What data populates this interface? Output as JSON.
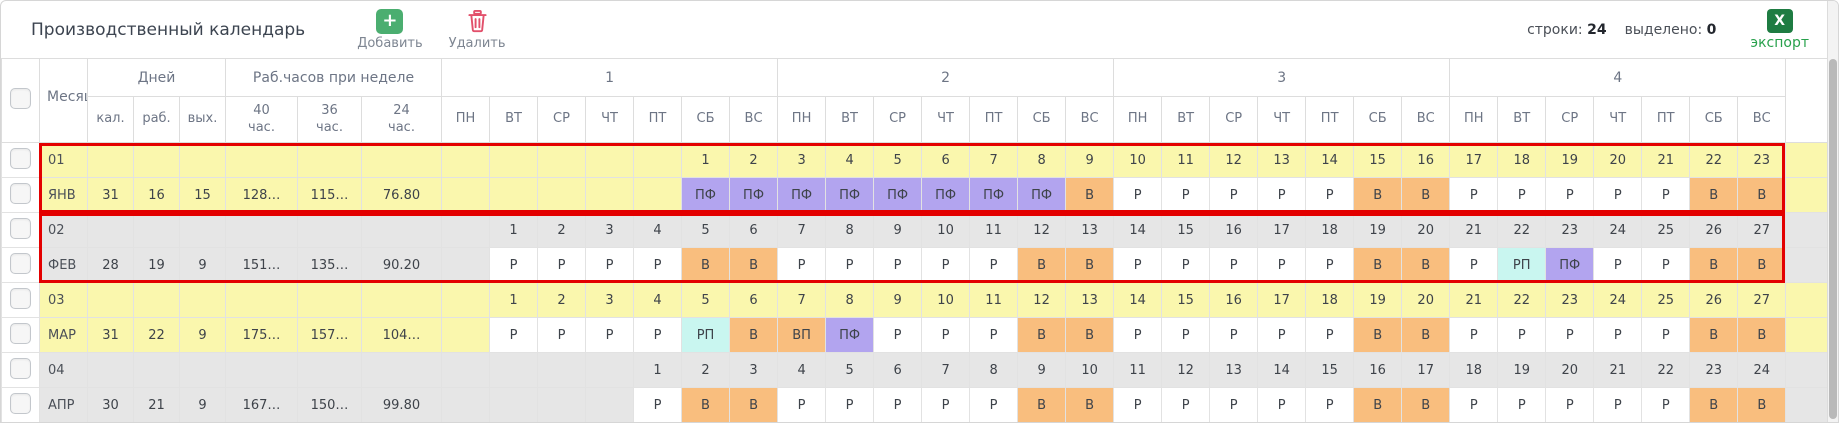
{
  "toolbar": {
    "title": "Производственный календарь",
    "add_label": "Добавить",
    "delete_label": "Удалить",
    "rows_label": "строки:",
    "rows_count": "24",
    "selected_label": "выделено:",
    "selected_count": "0",
    "export_label": "экспорт",
    "export_icon_letter": "X",
    "add_icon_glyph": "+"
  },
  "colors": {
    "zebra_yellow": "#faf7ad",
    "zebra_gray": "#e6e6e6",
    "selection_border": "#e30000",
    "add_button_green": "#4bae70",
    "trash_pink": "#e2506b",
    "excel_green": "#1e7c42",
    "export_text_green": "#28a14c"
  },
  "day_type_colors": {
    "Р": "#ffffff",
    "В": "#f9be7e",
    "ПФ": "#b2a4ef",
    "РП": "#c9f6f0",
    "ВП": "#f9be7e"
  },
  "table": {
    "month_col": "Месяц",
    "days_group": "Дней",
    "days_cols": [
      "кал.",
      "раб.",
      "вых."
    ],
    "hours_group": "Раб.часов при неделе",
    "hours_cols": [
      "40 час.",
      "36 час.",
      "24 час."
    ],
    "weeks": [
      "1",
      "2",
      "3",
      "4"
    ],
    "weekdays": [
      "ПН",
      "ВТ",
      "СР",
      "ЧТ",
      "ПТ",
      "СБ",
      "ВС"
    ]
  },
  "months": [
    {
      "num": "01",
      "name": "ЯНВ",
      "cal": "31",
      "rab": "16",
      "vyh": "15",
      "h40": "128…",
      "h36": "115…",
      "h24": "76.80",
      "zebra": "yellow",
      "selected": true,
      "days": [
        null,
        null,
        null,
        null,
        null,
        [
          "1",
          "ПФ"
        ],
        [
          "2",
          "ПФ"
        ],
        [
          "3",
          "ПФ"
        ],
        [
          "4",
          "ПФ"
        ],
        [
          "5",
          "ПФ"
        ],
        [
          "6",
          "ПФ"
        ],
        [
          "7",
          "ПФ"
        ],
        [
          "8",
          "ПФ"
        ],
        [
          "9",
          "В"
        ],
        [
          "10",
          "Р"
        ],
        [
          "11",
          "Р"
        ],
        [
          "12",
          "Р"
        ],
        [
          "13",
          "Р"
        ],
        [
          "14",
          "Р"
        ],
        [
          "15",
          "В"
        ],
        [
          "16",
          "В"
        ],
        [
          "17",
          "Р"
        ],
        [
          "18",
          "Р"
        ],
        [
          "19",
          "Р"
        ],
        [
          "20",
          "Р"
        ],
        [
          "21",
          "Р"
        ],
        [
          "22",
          "В"
        ],
        [
          "23",
          "В"
        ]
      ]
    },
    {
      "num": "02",
      "name": "ФЕВ",
      "cal": "28",
      "rab": "19",
      "vyh": "9",
      "h40": "151…",
      "h36": "135…",
      "h24": "90.20",
      "zebra": "gray",
      "selected": true,
      "days": [
        null,
        [
          "1",
          "Р"
        ],
        [
          "2",
          "Р"
        ],
        [
          "3",
          "Р"
        ],
        [
          "4",
          "Р"
        ],
        [
          "5",
          "В"
        ],
        [
          "6",
          "В"
        ],
        [
          "7",
          "Р"
        ],
        [
          "8",
          "Р"
        ],
        [
          "9",
          "Р"
        ],
        [
          "10",
          "Р"
        ],
        [
          "11",
          "Р"
        ],
        [
          "12",
          "В"
        ],
        [
          "13",
          "В"
        ],
        [
          "14",
          "Р"
        ],
        [
          "15",
          "Р"
        ],
        [
          "16",
          "Р"
        ],
        [
          "17",
          "Р"
        ],
        [
          "18",
          "Р"
        ],
        [
          "19",
          "В"
        ],
        [
          "20",
          "В"
        ],
        [
          "21",
          "Р"
        ],
        [
          "22",
          "РП"
        ],
        [
          "23",
          "ПФ"
        ],
        [
          "24",
          "Р"
        ],
        [
          "25",
          "Р"
        ],
        [
          "26",
          "В"
        ],
        [
          "27",
          "В"
        ]
      ]
    },
    {
      "num": "03",
      "name": "МАР",
      "cal": "31",
      "rab": "22",
      "vyh": "9",
      "h40": "175…",
      "h36": "157…",
      "h24": "104…",
      "zebra": "yellow",
      "selected": false,
      "days": [
        null,
        [
          "1",
          "Р"
        ],
        [
          "2",
          "Р"
        ],
        [
          "3",
          "Р"
        ],
        [
          "4",
          "Р"
        ],
        [
          "5",
          "РП"
        ],
        [
          "6",
          "В"
        ],
        [
          "7",
          "ВП"
        ],
        [
          "8",
          "ПФ"
        ],
        [
          "9",
          "Р"
        ],
        [
          "10",
          "Р"
        ],
        [
          "11",
          "Р"
        ],
        [
          "12",
          "В"
        ],
        [
          "13",
          "В"
        ],
        [
          "14",
          "Р"
        ],
        [
          "15",
          "Р"
        ],
        [
          "16",
          "Р"
        ],
        [
          "17",
          "Р"
        ],
        [
          "18",
          "Р"
        ],
        [
          "19",
          "В"
        ],
        [
          "20",
          "В"
        ],
        [
          "21",
          "Р"
        ],
        [
          "22",
          "Р"
        ],
        [
          "23",
          "Р"
        ],
        [
          "24",
          "Р"
        ],
        [
          "25",
          "Р"
        ],
        [
          "26",
          "В"
        ],
        [
          "27",
          "В"
        ]
      ]
    },
    {
      "num": "04",
      "name": "АПР",
      "cal": "30",
      "rab": "21",
      "vyh": "9",
      "h40": "167…",
      "h36": "150…",
      "h24": "99.80",
      "zebra": "gray",
      "selected": false,
      "days": [
        null,
        null,
        null,
        null,
        [
          "1",
          "Р"
        ],
        [
          "2",
          "В"
        ],
        [
          "3",
          "В"
        ],
        [
          "4",
          "Р"
        ],
        [
          "5",
          "Р"
        ],
        [
          "6",
          "Р"
        ],
        [
          "7",
          "Р"
        ],
        [
          "8",
          "Р"
        ],
        [
          "9",
          "В"
        ],
        [
          "10",
          "В"
        ],
        [
          "11",
          "Р"
        ],
        [
          "12",
          "Р"
        ],
        [
          "13",
          "Р"
        ],
        [
          "14",
          "Р"
        ],
        [
          "15",
          "Р"
        ],
        [
          "16",
          "В"
        ],
        [
          "17",
          "В"
        ],
        [
          "18",
          "Р"
        ],
        [
          "19",
          "Р"
        ],
        [
          "20",
          "Р"
        ],
        [
          "21",
          "Р"
        ],
        [
          "22",
          "Р"
        ],
        [
          "23",
          "В"
        ],
        [
          "24",
          "В"
        ]
      ]
    }
  ]
}
